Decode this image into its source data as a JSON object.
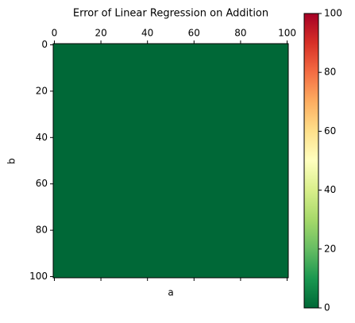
{
  "chart_data": {
    "type": "heatmap",
    "title": "Error of Linear Regression on Addition",
    "x_label": "a",
    "y_label": "b",
    "values": [
      [
        0
      ]
    ],
    "xlim": [
      -0.5,
      100.5
    ],
    "ylim": [
      100.5,
      -0.5
    ],
    "xticks": [
      0,
      20,
      40,
      60,
      80,
      100
    ],
    "yticks": [
      0,
      20,
      40,
      60,
      80,
      100
    ],
    "colormap": [
      "#006837",
      "#1a9850",
      "#66bd63",
      "#a6d96a",
      "#d9ef8b",
      "#ffffbf",
      "#fee08b",
      "#fdae61",
      "#f46d43",
      "#d73027",
      "#a50026"
    ],
    "clim": [
      0,
      100
    ],
    "cticks": [
      0,
      20,
      40,
      60,
      80,
      100
    ]
  }
}
